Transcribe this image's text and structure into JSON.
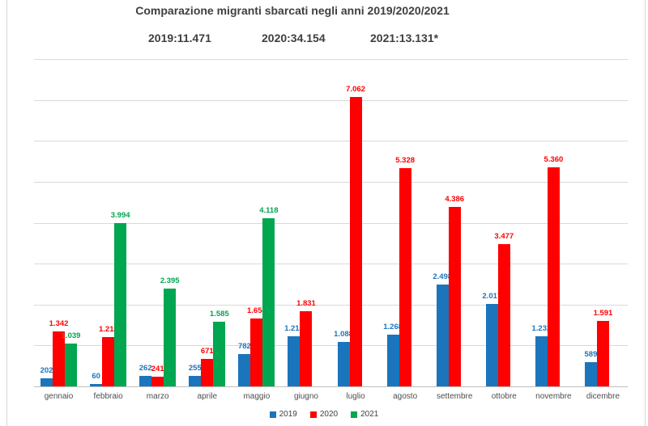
{
  "title": "Comparazione migranti sbarcati negli anni 2019/2020/2021",
  "subtitle": {
    "stats": [
      {
        "label": "2019:11.471"
      },
      {
        "label": "2020:34.154"
      },
      {
        "label": "2021:13.131*"
      }
    ]
  },
  "chart_data": {
    "type": "bar",
    "title": "Comparazione migranti sbarcati negli anni 2019/2020/2021",
    "categories": [
      "gennaio",
      "febbraio",
      "marzo",
      "aprile",
      "maggio",
      "giugno",
      "luglio",
      "agosto",
      "settembre",
      "ottobre",
      "novembre",
      "dicembre"
    ],
    "series": [
      {
        "name": "2019",
        "color": "#1b75bc",
        "total_label": "2019:11.471",
        "values": [
          202,
          60,
          262,
          255,
          782,
          1218,
          1088,
          1268,
          2498,
          2017,
          1232,
          589
        ]
      },
      {
        "name": "2020",
        "color": "#ff0000",
        "total_label": "2020:34.154",
        "values": [
          1342,
          1211,
          241,
          671,
          1654,
          1831,
          7062,
          5328,
          4386,
          3477,
          5360,
          1591
        ]
      },
      {
        "name": "2021",
        "color": "#00a650",
        "total_label": "2021:13.131*",
        "values": [
          1039,
          3994,
          2395,
          1585,
          4118,
          null,
          null,
          null,
          null,
          null,
          null,
          null
        ]
      }
    ],
    "xlabel": "",
    "ylabel": "",
    "ylim": [
      0,
      8000
    ],
    "gridline_interval": 1000,
    "grid": true,
    "y_axis_labels_visible": false,
    "data_labels": "outside-end, thousands separated by dot",
    "legend_position": "bottom"
  },
  "colors": {
    "gridline": "#d9d9d9",
    "axis": "#bfbfbf",
    "title_text": "#3f3f3f",
    "category_text": "#4d4d4d",
    "page_edge": "#d6d6d6"
  }
}
